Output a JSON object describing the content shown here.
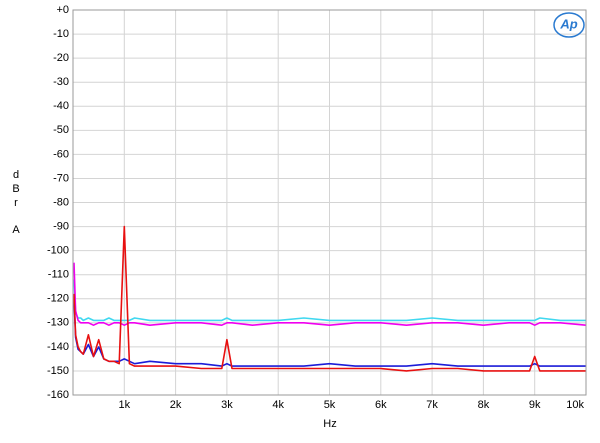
{
  "chart_data": {
    "type": "line",
    "logo": "Ap",
    "x_label": "Hz",
    "y_label_letters": [
      "d",
      "B",
      "r",
      "A"
    ],
    "xlim": [
      0,
      10000
    ],
    "ylim": [
      -160,
      0
    ],
    "xticks": [
      {
        "value": 1000,
        "label": "1k"
      },
      {
        "value": 2000,
        "label": "2k"
      },
      {
        "value": 3000,
        "label": "3k"
      },
      {
        "value": 4000,
        "label": "4k"
      },
      {
        "value": 5000,
        "label": "5k"
      },
      {
        "value": 6000,
        "label": "6k"
      },
      {
        "value": 7000,
        "label": "7k"
      },
      {
        "value": 8000,
        "label": "8k"
      },
      {
        "value": 9000,
        "label": "9k"
      },
      {
        "value": 10000,
        "label": "10k"
      }
    ],
    "yticks": [
      {
        "value": 0,
        "label": "+0"
      },
      -10,
      -20,
      -30,
      -40,
      -50,
      -60,
      -70,
      -80,
      -90,
      -100,
      -110,
      -120,
      -130,
      -140,
      -150,
      -160
    ],
    "grid": true,
    "x": [
      20,
      50,
      100,
      150,
      200,
      300,
      400,
      500,
      600,
      700,
      800,
      900,
      1000,
      1100,
      1200,
      1500,
      2000,
      2500,
      2900,
      3000,
      3100,
      3500,
      4000,
      4500,
      5000,
      5500,
      6000,
      6500,
      7000,
      7500,
      8000,
      8500,
      8900,
      9000,
      9100,
      9500,
      10000
    ],
    "series": [
      {
        "name": "cyan",
        "color": "#40d8f0",
        "values": [
          -112,
          -126,
          -128,
          -128,
          -129,
          -128,
          -129,
          -129,
          -129,
          -128,
          -129,
          -129,
          -129,
          -129,
          -128,
          -129,
          -129,
          -129,
          -129,
          -128,
          -129,
          -129,
          -129,
          -128,
          -129,
          -129,
          -129,
          -129,
          -128,
          -129,
          -129,
          -129,
          -129,
          -129,
          -128,
          -129,
          -129
        ]
      },
      {
        "name": "magenta",
        "color": "#f000f0",
        "values": [
          -105,
          -125,
          -129,
          -130,
          -130,
          -130,
          -131,
          -130,
          -130,
          -131,
          -130,
          -130,
          -131,
          -130,
          -130,
          -131,
          -130,
          -130,
          -131,
          -130,
          -130,
          -131,
          -130,
          -130,
          -131,
          -130,
          -130,
          -131,
          -130,
          -130,
          -131,
          -130,
          -130,
          -131,
          -130,
          -130,
          -131
        ]
      },
      {
        "name": "blue",
        "color": "#1c1cd8",
        "values": [
          -120,
          -136,
          -141,
          -142,
          -143,
          -139,
          -144,
          -140,
          -145,
          -146,
          -146,
          -146,
          -145,
          -146,
          -147,
          -146,
          -147,
          -147,
          -148,
          -147,
          -148,
          -148,
          -148,
          -148,
          -147,
          -148,
          -148,
          -148,
          -147,
          -148,
          -148,
          -148,
          -148,
          -147,
          -148,
          -148,
          -148
        ]
      },
      {
        "name": "red",
        "color": "#e81010",
        "values": [
          -118,
          -135,
          -140,
          -142,
          -143,
          -135,
          -144,
          -137,
          -145,
          -146,
          -146,
          -147,
          -90,
          -147,
          -148,
          -148,
          -148,
          -149,
          -149,
          -137,
          -149,
          -149,
          -149,
          -149,
          -149,
          -149,
          -149,
          -150,
          -149,
          -149,
          -150,
          -150,
          -150,
          -144,
          -150,
          -150,
          -150
        ]
      }
    ]
  }
}
